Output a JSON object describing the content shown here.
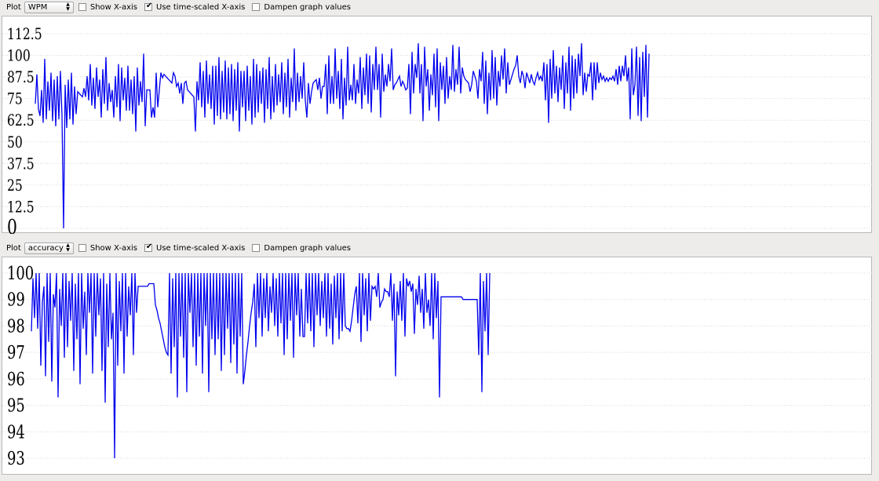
{
  "panels": [
    {
      "plot_label": "Plot",
      "plot_select": "WPM",
      "show_xaxis": {
        "label": "Show X-axis",
        "checked": false
      },
      "time_scaled": {
        "label": "Use time-scaled X-axis",
        "checked": true
      },
      "dampen": {
        "label": "Dampen graph values",
        "checked": false
      },
      "chart_data": {
        "type": "line",
        "series_color": "#0000ee",
        "ylim": [
          0,
          112.5
        ],
        "yticks": [
          "0",
          "12.5",
          "25",
          "37.5",
          "50",
          "62.5",
          "75",
          "87.5",
          "100",
          "112.5"
        ],
        "grid": true,
        "y": [
          72,
          89,
          69,
          65,
          80,
          61,
          98,
          63,
          85,
          68,
          90,
          62,
          86,
          59,
          88,
          63,
          91,
          65,
          0,
          83,
          58,
          86,
          63,
          90,
          60,
          82,
          66,
          79,
          78,
          77,
          76,
          81,
          76,
          88,
          74,
          95,
          71,
          87,
          69,
          93,
          76,
          86,
          64,
          92,
          72,
          99,
          68,
          84,
          73,
          80,
          64,
          88,
          70,
          95,
          62,
          93,
          74,
          87,
          68,
          94,
          68,
          86,
          66,
          88,
          56,
          93,
          71,
          85,
          73,
          101,
          59,
          80,
          80,
          80,
          64,
          70,
          64,
          90,
          70,
          80,
          90,
          87,
          89,
          88,
          87,
          86,
          85,
          84,
          90,
          88,
          82,
          84,
          78,
          84,
          72,
          84,
          85,
          80,
          79,
          78,
          77,
          76,
          56,
          85,
          74,
          96,
          70,
          91,
          64,
          97,
          72,
          89,
          69,
          94,
          60,
          94,
          65,
          99,
          63,
          91,
          67,
          97,
          63,
          93,
          66,
          95,
          62,
          92,
          68,
          96,
          56,
          91,
          70,
          91,
          62,
          94,
          68,
          88,
          60,
          98,
          64,
          95,
          67,
          91,
          72,
          93,
          61,
          92,
          69,
          99,
          63,
          88,
          67,
          95,
          71,
          89,
          73,
          96,
          66,
          90,
          70,
          98,
          64,
          87,
          73,
          104,
          68,
          90,
          73,
          88,
          75,
          96,
          74,
          64,
          84,
          72,
          79,
          84,
          85,
          86,
          80,
          87,
          75,
          82,
          82,
          95,
          66,
          100,
          72,
          88,
          72,
          104,
          75,
          91,
          69,
          98,
          63,
          87,
          71,
          105,
          74,
          83,
          74,
          95,
          72,
          86,
          78,
          99,
          69,
          93,
          77,
          101,
          72,
          100,
          67,
          95,
          80,
          105,
          80,
          95,
          64,
          101,
          79,
          89,
          82,
          95,
          85,
          104,
          80,
          83,
          84,
          86,
          88,
          82,
          85,
          83,
          80,
          81,
          95,
          66,
          102,
          78,
          95,
          87,
          107,
          78,
          95,
          62,
          105,
          82,
          92,
          68,
          89,
          77,
          101,
          70,
          104,
          62,
          96,
          80,
          94,
          72,
          99,
          75,
          88,
          80,
          106,
          79,
          92,
          83,
          105,
          78,
          93,
          88,
          86,
          85,
          84,
          79,
          83,
          91,
          88,
          85,
          75,
          92,
          85,
          102,
          72,
          97,
          66,
          90,
          74,
          103,
          75,
          99,
          71,
          91,
          82,
          100,
          86,
          104,
          78,
          96,
          83,
          86,
          89,
          92,
          94,
          100,
          88,
          84,
          91,
          88,
          81,
          90,
          87,
          84,
          89,
          85,
          83,
          87,
          90,
          86,
          88,
          85,
          96,
          74,
          95,
          61,
          98,
          75,
          103,
          78,
          94,
          73,
          93,
          80,
          100,
          69,
          96,
          78,
          105,
          68,
          100,
          75,
          98,
          78,
          101,
          88,
          107,
          77,
          90,
          79,
          89,
          88,
          96,
          74,
          96,
          80,
          96,
          84,
          90,
          86,
          88,
          85,
          87,
          85,
          87,
          86,
          88,
          85,
          92,
          83,
          94,
          85,
          94,
          88,
          100,
          85,
          93,
          63,
          104,
          77,
          83,
          105,
          65,
          99,
          62,
          102,
          76,
          106,
          64,
          101
        ],
        "note": "values estimated from the plot, every 2px"
      }
    },
    {
      "plot_label": "Plot",
      "plot_select": "accuracy",
      "show_xaxis": {
        "label": "Show X-axis",
        "checked": false
      },
      "time_scaled": {
        "label": "Use time-scaled X-axis",
        "checked": true
      },
      "dampen": {
        "label": "Dampen graph values",
        "checked": false
      },
      "chart_data": {
        "type": "line",
        "series_color": "#0000ee",
        "ylim": [
          93,
          100
        ],
        "yticks": [
          "93",
          "94",
          "95",
          "96",
          "97",
          "98",
          "99",
          "100"
        ],
        "grid": true,
        "y": [
          97.8,
          99.8,
          98.3,
          100,
          97.9,
          100,
          96.5,
          98.9,
          99.5,
          96.1,
          100,
          97.4,
          100,
          95.9,
          99.2,
          98.7,
          100,
          95.3,
          99.4,
          98.0,
          100,
          96.8,
          100,
          97.2,
          99.7,
          98.2,
          100,
          96.3,
          99.6,
          97.5,
          100,
          95.8,
          100,
          97.9,
          99.3,
          96.9,
          100,
          98.5,
          100,
          96.2,
          100,
          97.6,
          100,
          98.4,
          99.8,
          96.3,
          100,
          95.1,
          99.6,
          97.2,
          100,
          97.5,
          98.5,
          93.0,
          100,
          96.5,
          99.7,
          97.8,
          100,
          96.2,
          100,
          97.6,
          99.5,
          98.4,
          100,
          96.9,
          100,
          98.5,
          99.5,
          99.5,
          99.5,
          99.5,
          99.5,
          99.5,
          99.5,
          99.6,
          99.6,
          99.6,
          99.6,
          98.8,
          98.6,
          98.3,
          98.1,
          97.8,
          97.5,
          97.2,
          97.0,
          96.9,
          100,
          96.2,
          99.8,
          97.2,
          100,
          95.3,
          100,
          97.6,
          100,
          96.8,
          100,
          95.5,
          100,
          98.5,
          100,
          97.2,
          100,
          96.5,
          100,
          97.6,
          100,
          96.2,
          100,
          98.0,
          100,
          95.5,
          100,
          97.5,
          100,
          96.9,
          100,
          97.5,
          100,
          96.3,
          100,
          96.9,
          100,
          97.9,
          100,
          96.6,
          100,
          97.3,
          100,
          96.2,
          100,
          97.6,
          100,
          95.8,
          96.3,
          96.9,
          97.4,
          98.0,
          98.5,
          98.9,
          99.6,
          97.2,
          100,
          98.3,
          100,
          97.6,
          99.8,
          98.3,
          100,
          97.8,
          99.5,
          98.5,
          100,
          98.0,
          99.8,
          97.6,
          100,
          98.1,
          100,
          96.9,
          100,
          97.5,
          100,
          98.2,
          100,
          96.8,
          100,
          98.4,
          100,
          97.6,
          99.4,
          97.6,
          97.6,
          100,
          98.1,
          100,
          97.8,
          100,
          97.2,
          100,
          98.4,
          100,
          98.0,
          99.7,
          98.3,
          100,
          97.6,
          100,
          97.9,
          99.6,
          97.3,
          99.9,
          98.3,
          100,
          97.5,
          100,
          97.8,
          100,
          98.0,
          97.9,
          97.9,
          97.8,
          98.2,
          98.7,
          99.2,
          99.5,
          98.1,
          100,
          97.4,
          100,
          98.4,
          99.8,
          97.8,
          100,
          98.2,
          99.5,
          99.4,
          99.5,
          99.1,
          100,
          98.7,
          98.9,
          99.0,
          99.4,
          99.3,
          99.3,
          99.1,
          100,
          98.2,
          99.6,
          96.1,
          99.3,
          98.4,
          99.7,
          98.2,
          100,
          97.6,
          99.8,
          99.5,
          99.7,
          99.3,
          99.6,
          97.7,
          99.4,
          98.8,
          99.9,
          98.5,
          99.4,
          97.9,
          100,
          98.5,
          99.0,
          98.0,
          100,
          97.5,
          100,
          98.3,
          99.7,
          95.3,
          99.1,
          99.1,
          99.1,
          99.1,
          99.1,
          99.1,
          99.1,
          99.1,
          99.1,
          99.1,
          99.1,
          99.1,
          99.1,
          99.1,
          99.0,
          99.0,
          99.0,
          99.0,
          99.0,
          99.0,
          99.0,
          99.0,
          99.0,
          99.0,
          96.9,
          100,
          95.5,
          99.7,
          97.8,
          100,
          96.9,
          100
        ],
        "note": "values estimated from the plot, every 2px"
      }
    }
  ]
}
